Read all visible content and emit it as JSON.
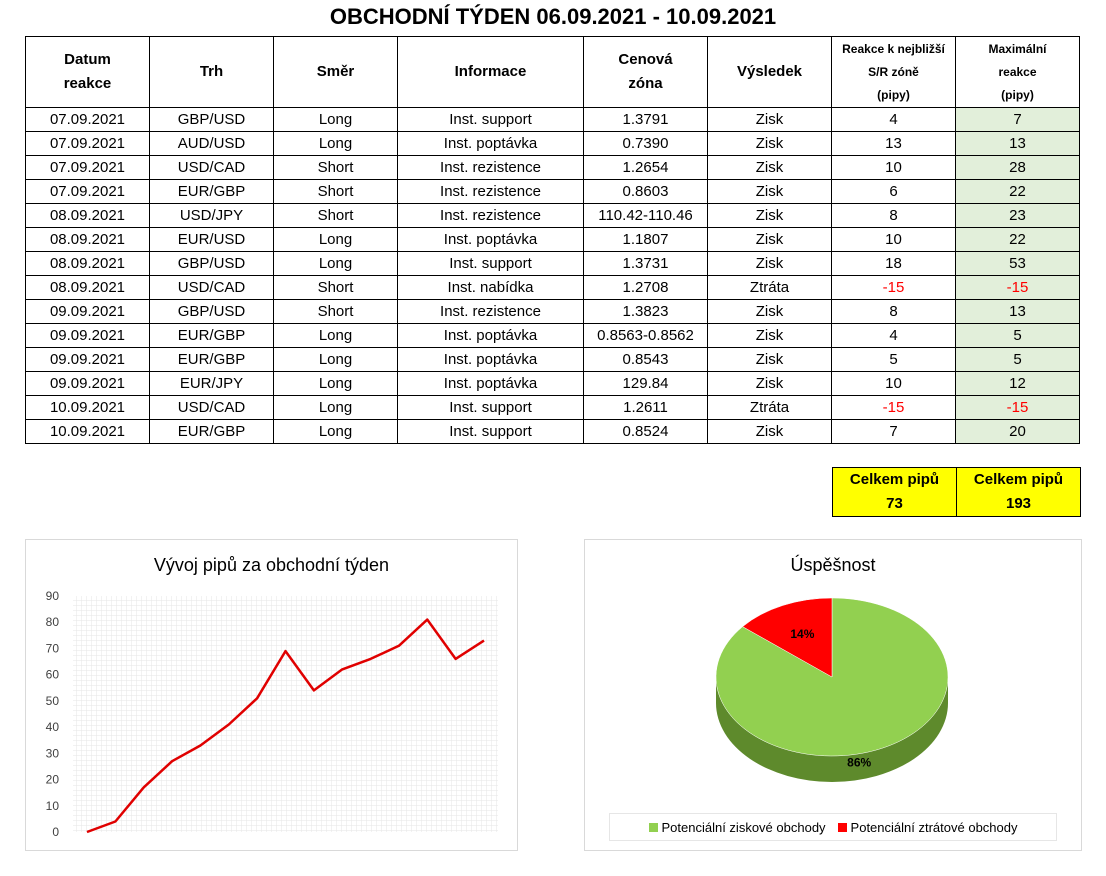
{
  "title": "OBCHODNÍ TÝDEN 06.09.2021 - 10.09.2021",
  "table": {
    "headers": {
      "date_l1": "Datum",
      "date_l2": "reakce",
      "market": "Trh",
      "direction": "Směr",
      "info": "Informace",
      "zone_l1": "Cenová",
      "zone_l2": "zóna",
      "result": "Výsledek",
      "reaction_l1": "Reakce k nejbližší",
      "reaction_l2": "S/R zóně",
      "reaction_l3": "(pipy)",
      "max_l1": "Maximální",
      "max_l2": "reakce",
      "max_l3": "(pipy)"
    },
    "rows": [
      {
        "date": "07.09.2021",
        "market": "GBP/USD",
        "direction": "Long",
        "info": "Inst. support",
        "zone": "1.3791",
        "result": "Zisk",
        "reaction": "4",
        "max": "7"
      },
      {
        "date": "07.09.2021",
        "market": "AUD/USD",
        "direction": "Long",
        "info": "Inst. poptávka",
        "zone": "0.7390",
        "result": "Zisk",
        "reaction": "13",
        "max": "13"
      },
      {
        "date": "07.09.2021",
        "market": "USD/CAD",
        "direction": "Short",
        "info": "Inst. rezistence",
        "zone": "1.2654",
        "result": "Zisk",
        "reaction": "10",
        "max": "28"
      },
      {
        "date": "07.09.2021",
        "market": "EUR/GBP",
        "direction": "Short",
        "info": "Inst. rezistence",
        "zone": "0.8603",
        "result": "Zisk",
        "reaction": "6",
        "max": "22"
      },
      {
        "date": "08.09.2021",
        "market": "USD/JPY",
        "direction": "Short",
        "info": "Inst. rezistence",
        "zone": "110.42-110.46",
        "result": "Zisk",
        "reaction": "8",
        "max": "23"
      },
      {
        "date": "08.09.2021",
        "market": "EUR/USD",
        "direction": "Long",
        "info": "Inst. poptávka",
        "zone": "1.1807",
        "result": "Zisk",
        "reaction": "10",
        "max": "22"
      },
      {
        "date": "08.09.2021",
        "market": "GBP/USD",
        "direction": "Long",
        "info": "Inst. support",
        "zone": "1.3731",
        "result": "Zisk",
        "reaction": "18",
        "max": "53"
      },
      {
        "date": "08.09.2021",
        "market": "USD/CAD",
        "direction": "Short",
        "info": "Inst. nabídka",
        "zone": "1.2708",
        "result": "Ztráta",
        "reaction": "-15",
        "max": "-15"
      },
      {
        "date": "09.09.2021",
        "market": "GBP/USD",
        "direction": "Short",
        "info": "Inst. rezistence",
        "zone": "1.3823",
        "result": "Zisk",
        "reaction": "8",
        "max": "13"
      },
      {
        "date": "09.09.2021",
        "market": "EUR/GBP",
        "direction": "Long",
        "info": "Inst. poptávka",
        "zone": "0.8563-0.8562",
        "result": "Zisk",
        "reaction": "4",
        "max": "5"
      },
      {
        "date": "09.09.2021",
        "market": "EUR/GBP",
        "direction": "Long",
        "info": "Inst. poptávka",
        "zone": "0.8543",
        "result": "Zisk",
        "reaction": "5",
        "max": "5"
      },
      {
        "date": "09.09.2021",
        "market": "EUR/JPY",
        "direction": "Long",
        "info": "Inst. poptávka",
        "zone": "129.84",
        "result": "Zisk",
        "reaction": "10",
        "max": "12"
      },
      {
        "date": "10.09.2021",
        "market": "USD/CAD",
        "direction": "Long",
        "info": "Inst. support",
        "zone": "1.2611",
        "result": "Ztráta",
        "reaction": "-15",
        "max": "-15"
      },
      {
        "date": "10.09.2021",
        "market": "EUR/GBP",
        "direction": "Long",
        "info": "Inst. support",
        "zone": "0.8524",
        "result": "Zisk",
        "reaction": "7",
        "max": "20"
      }
    ]
  },
  "totals": [
    {
      "label": "Celkem pipů",
      "value": "73"
    },
    {
      "label": "Celkem pipů",
      "value": "193"
    }
  ],
  "colors": {
    "accent_green": "#e2efda",
    "totals_yellow": "#ffff00",
    "loss_red": "#ff0000",
    "line_red": "#e00000",
    "pie_green": "#92d050",
    "pie_red": "#ff0000"
  },
  "chart_data": [
    {
      "type": "line",
      "title": "Vývoj pipů za obchodní týden",
      "x": [
        1,
        2,
        3,
        4,
        5,
        6,
        7,
        8,
        9,
        10,
        11,
        12,
        13,
        14,
        15
      ],
      "series": [
        {
          "values": [
            0,
            4,
            17,
            27,
            33,
            41,
            51,
            69,
            54,
            62,
            66,
            71,
            81,
            66,
            73
          ]
        }
      ],
      "ylim": [
        0,
        90
      ],
      "yticks": [
        "0",
        "10",
        "20",
        "30",
        "40",
        "50",
        "60",
        "70",
        "80",
        "90"
      ],
      "grid": true,
      "color": "#e00000"
    },
    {
      "type": "pie",
      "title": "Úspěšnost",
      "slices": [
        {
          "name": "Potenciální ziskové obchody",
          "value": 86,
          "label": "86%",
          "color": "#92d050"
        },
        {
          "name": "Potenciální ztrátové obchody",
          "value": 14,
          "label": "14%",
          "color": "#ff0000"
        }
      ],
      "legend": "bottom"
    }
  ]
}
